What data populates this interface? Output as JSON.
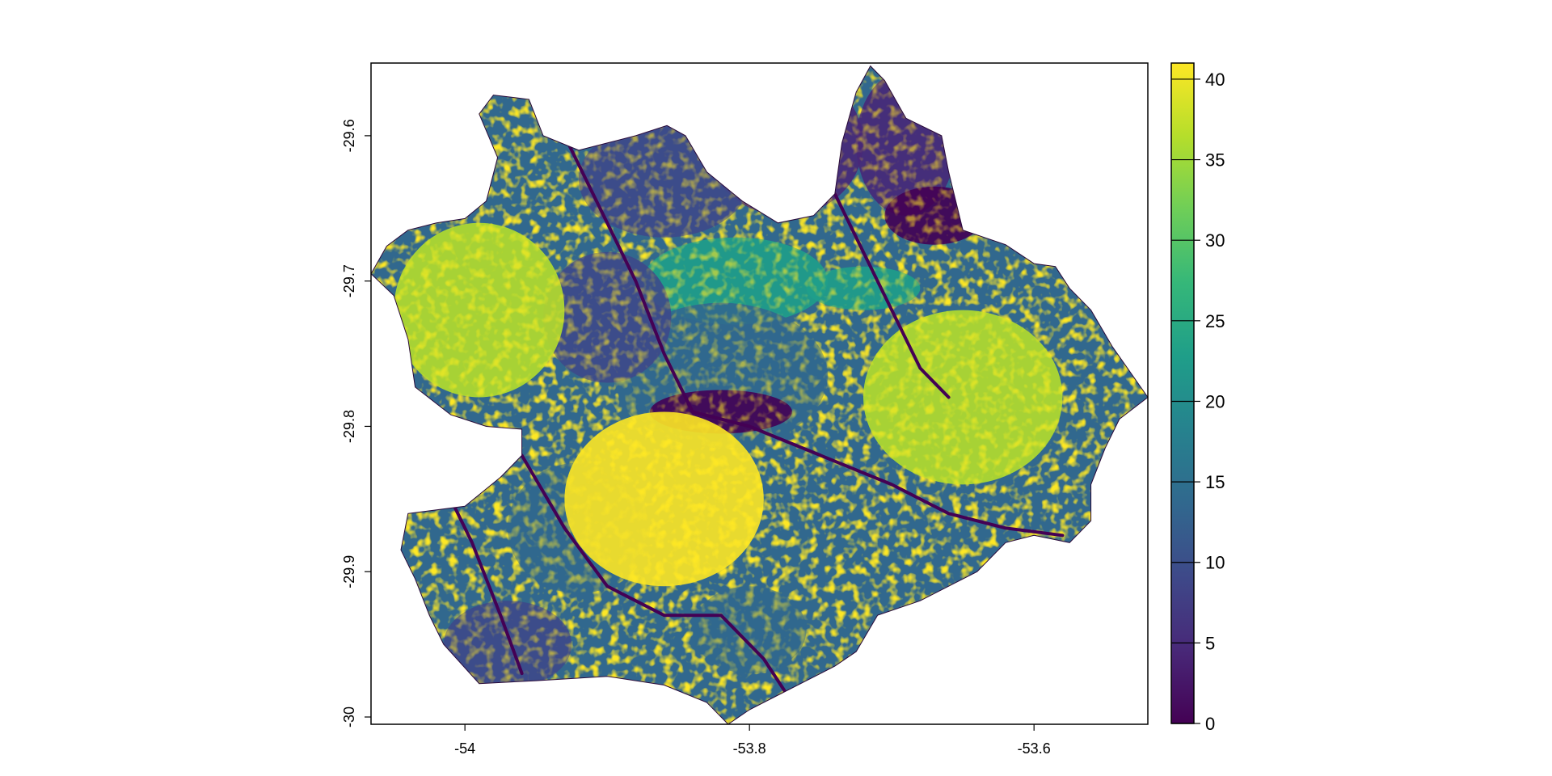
{
  "map": {
    "type": "raster",
    "x_range": [
      -54.066,
      -53.52
    ],
    "y_range": [
      -30.005,
      -29.55
    ],
    "x_ticks": [
      {
        "value": -54,
        "label": "-54"
      },
      {
        "value": -53.8,
        "label": "-53.8"
      },
      {
        "value": -53.6,
        "label": "-53.6"
      }
    ],
    "y_ticks": [
      {
        "value": -29.6,
        "label": "-29.6"
      },
      {
        "value": -29.7,
        "label": "-29.7"
      },
      {
        "value": -29.8,
        "label": "-29.8"
      },
      {
        "value": -29.9,
        "label": "-29.9"
      },
      {
        "value": -30,
        "label": "-30"
      }
    ],
    "region_outline_lonlat": [
      [
        -54.066,
        -29.695
      ],
      [
        -54.055,
        -29.676
      ],
      [
        -54.04,
        -29.665
      ],
      [
        -54.02,
        -29.66
      ],
      [
        -54.0,
        -29.657
      ],
      [
        -53.985,
        -29.645
      ],
      [
        -53.977,
        -29.615
      ],
      [
        -53.99,
        -29.585
      ],
      [
        -53.98,
        -29.572
      ],
      [
        -53.955,
        -29.575
      ],
      [
        -53.945,
        -29.6
      ],
      [
        -53.92,
        -29.61
      ],
      [
        -53.9,
        -29.605
      ],
      [
        -53.88,
        -29.6
      ],
      [
        -53.858,
        -29.593
      ],
      [
        -53.845,
        -29.6
      ],
      [
        -53.83,
        -29.625
      ],
      [
        -53.805,
        -29.645
      ],
      [
        -53.78,
        -29.66
      ],
      [
        -53.755,
        -29.655
      ],
      [
        -53.74,
        -29.64
      ],
      [
        -53.735,
        -29.605
      ],
      [
        -53.725,
        -29.57
      ],
      [
        -53.715,
        -29.552
      ],
      [
        -53.705,
        -29.562
      ],
      [
        -53.69,
        -29.588
      ],
      [
        -53.665,
        -29.6
      ],
      [
        -53.66,
        -29.625
      ],
      [
        -53.65,
        -29.665
      ],
      [
        -53.62,
        -29.675
      ],
      [
        -53.6,
        -29.688
      ],
      [
        -53.585,
        -29.69
      ],
      [
        -53.575,
        -29.705
      ],
      [
        -53.56,
        -29.72
      ],
      [
        -53.545,
        -29.745
      ],
      [
        -53.52,
        -29.78
      ],
      [
        -53.54,
        -29.795
      ],
      [
        -53.55,
        -29.815
      ],
      [
        -53.56,
        -29.84
      ],
      [
        -53.56,
        -29.865
      ],
      [
        -53.575,
        -29.88
      ],
      [
        -53.6,
        -29.875
      ],
      [
        -53.62,
        -29.88
      ],
      [
        -53.64,
        -29.9
      ],
      [
        -53.66,
        -29.91
      ],
      [
        -53.68,
        -29.92
      ],
      [
        -53.71,
        -29.93
      ],
      [
        -53.725,
        -29.955
      ],
      [
        -53.74,
        -29.965
      ],
      [
        -53.76,
        -29.975
      ],
      [
        -53.78,
        -29.985
      ],
      [
        -53.8,
        -29.995
      ],
      [
        -53.815,
        -30.005
      ],
      [
        -53.83,
        -29.99
      ],
      [
        -53.86,
        -29.978
      ],
      [
        -53.9,
        -29.972
      ],
      [
        -53.95,
        -29.975
      ],
      [
        -53.99,
        -29.977
      ],
      [
        -54.015,
        -29.95
      ],
      [
        -54.025,
        -29.93
      ],
      [
        -54.035,
        -29.905
      ],
      [
        -54.045,
        -29.885
      ],
      [
        -54.04,
        -29.86
      ],
      [
        -54.0,
        -29.855
      ],
      [
        -53.975,
        -29.835
      ],
      [
        -53.96,
        -29.82
      ],
      [
        -53.96,
        -29.802
      ],
      [
        -53.985,
        -29.8
      ],
      [
        -54.01,
        -29.792
      ],
      [
        -54.035,
        -29.773
      ],
      [
        -54.04,
        -29.74
      ],
      [
        -54.05,
        -29.71
      ]
    ],
    "value_patches": [
      {
        "value": 5,
        "center": [
          -53.775,
          -29.605
        ],
        "radius": [
          0.055,
          0.05
        ]
      },
      {
        "value": 3,
        "center": [
          -53.69,
          -29.605
        ],
        "radius": [
          0.035,
          0.05
        ]
      },
      {
        "value": 0,
        "center": [
          -53.67,
          -29.655
        ],
        "radius": [
          0.035,
          0.02
        ]
      },
      {
        "value": 8,
        "center": [
          -53.86,
          -29.63
        ],
        "radius": [
          0.06,
          0.04
        ]
      },
      {
        "value": 24,
        "center": [
          -53.81,
          -29.7
        ],
        "radius": [
          0.065,
          0.03
        ]
      },
      {
        "value": 23,
        "center": [
          -53.72,
          -29.705
        ],
        "radius": [
          0.04,
          0.015
        ]
      },
      {
        "value": 12,
        "center": [
          -53.82,
          -29.765
        ],
        "radius": [
          0.075,
          0.05
        ]
      },
      {
        "value": 10,
        "center": [
          -53.9,
          -29.725
        ],
        "radius": [
          0.045,
          0.045
        ]
      },
      {
        "value": 2,
        "center": [
          -53.82,
          -29.79
        ],
        "radius": [
          0.05,
          0.015
        ]
      },
      {
        "value": 12,
        "center": [
          -53.92,
          -29.87
        ],
        "radius": [
          0.05,
          0.045
        ]
      },
      {
        "value": 14,
        "center": [
          -53.8,
          -29.94
        ],
        "radius": [
          0.04,
          0.03
        ]
      },
      {
        "value": 9,
        "center": [
          -53.97,
          -29.95
        ],
        "radius": [
          0.045,
          0.03
        ]
      },
      {
        "value": 38,
        "center": [
          -53.99,
          -29.72
        ],
        "radius": [
          0.06,
          0.06
        ]
      },
      {
        "value": 38,
        "center": [
          -53.65,
          -29.78
        ],
        "radius": [
          0.07,
          0.06
        ]
      },
      {
        "value": 39,
        "center": [
          -53.86,
          -29.85
        ],
        "radius": [
          0.07,
          0.06
        ]
      }
    ],
    "rivers_lonlat": [
      [
        [
          -53.93,
          -29.6
        ],
        [
          -53.9,
          -29.66
        ],
        [
          -53.88,
          -29.7
        ],
        [
          -53.86,
          -29.75
        ],
        [
          -53.84,
          -29.79
        ],
        [
          -53.8,
          -29.8
        ],
        [
          -53.75,
          -29.82
        ],
        [
          -53.7,
          -29.84
        ],
        [
          -53.66,
          -29.86
        ],
        [
          -53.62,
          -29.87
        ],
        [
          -53.58,
          -29.875
        ]
      ],
      [
        [
          -54.02,
          -29.83
        ],
        [
          -53.995,
          -29.88
        ],
        [
          -53.975,
          -29.93
        ],
        [
          -53.96,
          -29.97
        ]
      ],
      [
        [
          -53.96,
          -29.82
        ],
        [
          -53.93,
          -29.87
        ],
        [
          -53.9,
          -29.91
        ],
        [
          -53.86,
          -29.93
        ],
        [
          -53.82,
          -29.93
        ],
        [
          -53.79,
          -29.96
        ],
        [
          -53.77,
          -29.99
        ]
      ],
      [
        [
          -53.74,
          -29.64
        ],
        [
          -53.72,
          -29.68
        ],
        [
          -53.7,
          -29.72
        ],
        [
          -53.68,
          -29.76
        ],
        [
          -53.66,
          -29.78
        ]
      ]
    ]
  },
  "legend": {
    "min": 0,
    "max": 41,
    "ticks": [
      {
        "value": 0,
        "label": "0"
      },
      {
        "value": 5,
        "label": "5"
      },
      {
        "value": 10,
        "label": "10"
      },
      {
        "value": 15,
        "label": "15"
      },
      {
        "value": 20,
        "label": "20"
      },
      {
        "value": 25,
        "label": "25"
      },
      {
        "value": 30,
        "label": "30"
      },
      {
        "value": 35,
        "label": "35"
      },
      {
        "value": 40,
        "label": "40"
      }
    ],
    "colors": [
      "#440154",
      "#482878",
      "#3e4989",
      "#31688e",
      "#26828e",
      "#1f9e89",
      "#35b779",
      "#6ece58",
      "#b5de2b",
      "#fde725"
    ]
  }
}
